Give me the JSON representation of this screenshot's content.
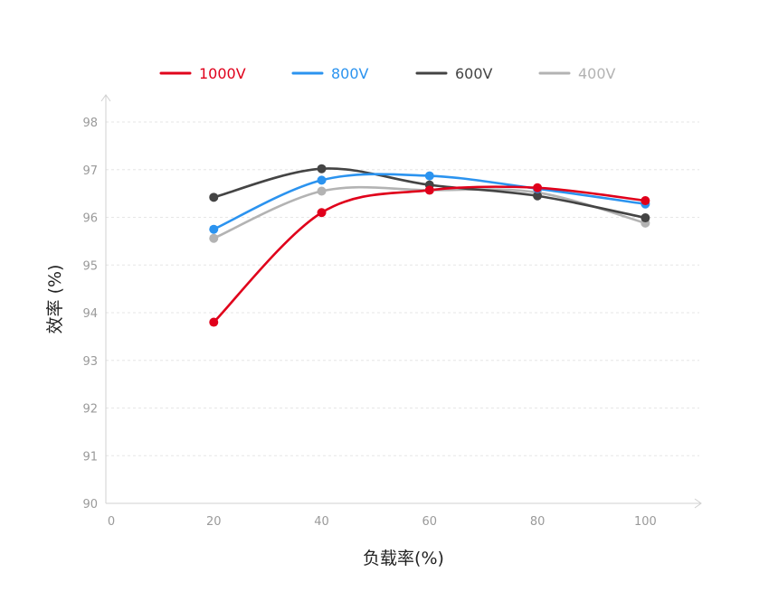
{
  "chart_data": {
    "type": "line",
    "xlabel": "负载率(%)",
    "ylabel": "效率 (%)",
    "xlim": [
      0,
      110
    ],
    "ylim": [
      90,
      98
    ],
    "x_ticks": [
      0,
      20,
      40,
      60,
      80,
      100
    ],
    "y_ticks": [
      90,
      91,
      92,
      93,
      94,
      95,
      96,
      97,
      98
    ],
    "grid": true,
    "smooth": true,
    "legend_position": "top-center",
    "x": [
      20,
      40,
      60,
      80,
      100
    ],
    "series": [
      {
        "name": "1000V",
        "color": "#e0001b",
        "values": [
          93.8,
          96.1,
          96.57,
          96.62,
          96.35
        ]
      },
      {
        "name": "800V",
        "color": "#2b93ef",
        "values": [
          95.75,
          96.78,
          96.87,
          96.6,
          96.28
        ]
      },
      {
        "name": "600V",
        "color": "#444444",
        "values": [
          96.42,
          97.02,
          96.68,
          96.45,
          95.99
        ]
      },
      {
        "name": "400V",
        "color": "#b3b3b3",
        "values": [
          95.56,
          96.55,
          96.57,
          96.52,
          95.88
        ]
      }
    ]
  }
}
